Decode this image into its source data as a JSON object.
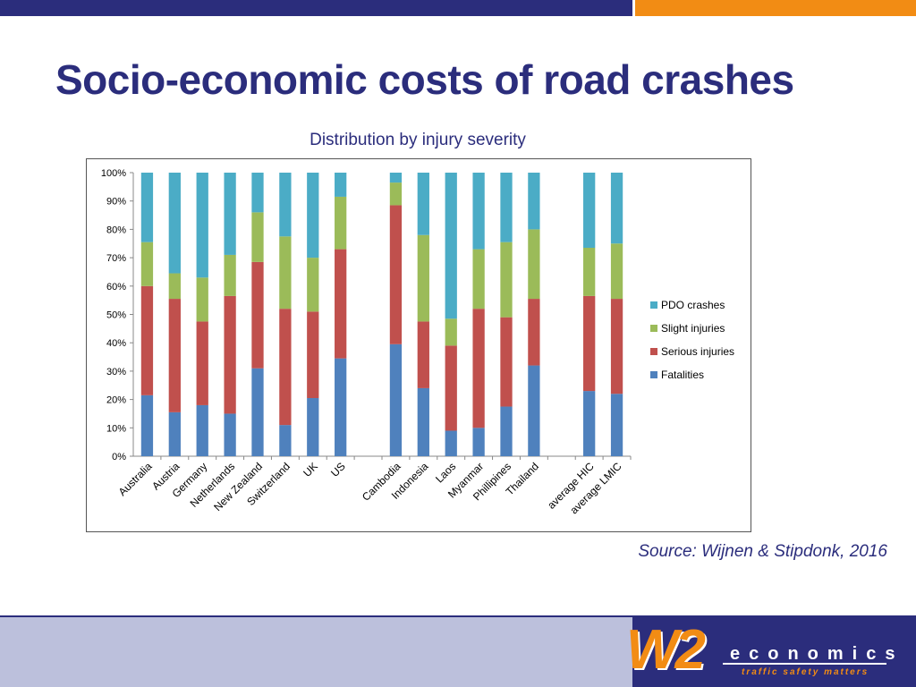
{
  "slide": {
    "title": "Socio-economic costs of road crashes",
    "source": "Source: Wijnen & Stipdonk, 2016"
  },
  "logo": {
    "mark": "W2",
    "word": "economics",
    "tagline": "traffic safety matters"
  },
  "colors": {
    "fatalities": "#4f81bd",
    "serious": "#c0504d",
    "slight": "#9bbb59",
    "pdo": "#4bacc6",
    "brand_navy": "#2b2d7c",
    "brand_orange": "#f28c14"
  },
  "chart_data": {
    "type": "bar",
    "stacked": true,
    "title": "Distribution by injury severity",
    "categories": [
      "Australia",
      "Austria",
      "Germany",
      "Netherlands",
      "New Zealand",
      "Switzerland",
      "UK",
      "US",
      "",
      "Cambodia",
      "Indonesia",
      "Laos",
      "Myanmar",
      "Phillipines",
      "Thailand",
      "",
      "average HIC",
      "average LMIC"
    ],
    "series": [
      {
        "name": "Fatalities",
        "values": [
          21.5,
          15.5,
          18,
          15,
          31,
          11,
          20.5,
          34.5,
          null,
          39.5,
          24,
          9,
          10,
          17.5,
          32,
          null,
          23,
          22
        ]
      },
      {
        "name": "Serious injuries",
        "values": [
          38.5,
          40,
          29.5,
          41.5,
          37.5,
          41,
          30.5,
          38.5,
          null,
          49,
          23.5,
          30,
          42,
          31.5,
          23.5,
          null,
          33.5,
          33.5
        ]
      },
      {
        "name": "Slight injuries",
        "values": [
          15.5,
          9,
          15.5,
          14.5,
          17.5,
          25.5,
          19,
          18.5,
          null,
          8,
          30.5,
          9.5,
          21,
          26.5,
          24.5,
          null,
          17,
          19.5
        ]
      },
      {
        "name": "PDO crashes",
        "values": [
          24.5,
          35.5,
          37,
          29,
          14,
          22.5,
          30,
          8.5,
          null,
          3.5,
          22,
          51.5,
          27,
          24.5,
          20,
          null,
          26.5,
          25
        ]
      }
    ],
    "yticks": [
      "0%",
      "10%",
      "20%",
      "30%",
      "40%",
      "50%",
      "60%",
      "70%",
      "80%",
      "90%",
      "100%"
    ],
    "ylim": [
      0,
      100
    ],
    "legend": [
      "PDO crashes",
      "Slight injuries",
      "Serious injuries",
      "Fatalities"
    ],
    "legend_position": "right",
    "grid": false
  }
}
